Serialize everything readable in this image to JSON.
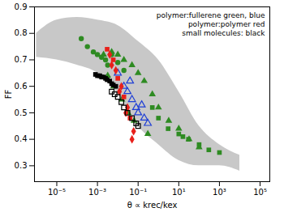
{
  "chart_data": {
    "type": "scatter",
    "x_label": "θ ∝ krec/kex",
    "y_label": "FF",
    "log": "x",
    "xlim": [
      8e-07,
      300000
    ],
    "ylim": [
      0.24,
      0.9
    ],
    "xticks": [
      {
        "value": 1e-05,
        "label": "10⁻⁵"
      },
      {
        "value": 0.001,
        "label": "10⁻³"
      },
      {
        "value": 0.1,
        "label": "10⁻¹"
      },
      {
        "value": 10,
        "label": "10¹"
      },
      {
        "value": 1000,
        "label": "10³"
      },
      {
        "value": 100000,
        "label": "10⁵"
      }
    ],
    "yticks": [
      0.3,
      0.4,
      0.5,
      0.6,
      0.7,
      0.8,
      0.9
    ],
    "annotations": [
      "polymer:fullerene green, blue",
      "polymer:polymer red",
      "small molecules: black"
    ],
    "series": [
      {
        "type": "area",
        "color": "#c8c8c8",
        "x": [
          1e-06,
          1e-05,
          0.0001,
          0.001,
          0.01,
          0.1,
          1,
          10,
          100,
          1000,
          10000
        ],
        "lower": [
          0.71,
          0.7,
          0.68,
          0.65,
          0.57,
          0.45,
          0.38,
          0.32,
          0.3,
          0.3,
          0.28
        ],
        "upper": [
          0.8,
          0.85,
          0.86,
          0.85,
          0.83,
          0.77,
          0.7,
          0.58,
          0.45,
          0.38,
          0.34
        ]
      },
      {
        "type": "scatter",
        "color": "#2e8b22",
        "marker": "circle",
        "x": [
          0.00016,
          0.00032,
          0.00063,
          0.001,
          0.0016,
          0.0025,
          0.0032,
          0.005,
          0.01,
          0.02
        ],
        "values": [
          0.78,
          0.75,
          0.73,
          0.72,
          0.71,
          0.7,
          0.68,
          0.72,
          0.69,
          0.66
        ]
      },
      {
        "type": "scatter",
        "color": "#2e8b22",
        "marker": "triangle",
        "x": [
          0.002,
          0.005,
          0.01,
          0.02,
          0.05,
          0.1,
          0.2,
          0.5,
          1,
          3.2,
          10,
          32,
          100,
          0.0032,
          0.0063,
          0.016,
          0.032,
          0.063,
          0.3
        ],
        "values": [
          0.72,
          0.73,
          0.72,
          0.7,
          0.68,
          0.65,
          0.62,
          0.57,
          0.52,
          0.47,
          0.44,
          0.4,
          0.37,
          0.64,
          0.6,
          0.55,
          0.5,
          0.47,
          0.42
        ]
      },
      {
        "type": "scatter",
        "color": "#2e8b22",
        "marker": "square",
        "x": [
          0.5,
          1,
          3,
          10,
          16,
          30,
          100,
          300,
          1000
        ],
        "values": [
          0.52,
          0.48,
          0.44,
          0.42,
          0.41,
          0.4,
          0.38,
          0.36,
          0.35
        ]
      },
      {
        "type": "scatter",
        "color": "#1f3fd6",
        "marker": "open-triangle",
        "x": [
          0.01,
          0.02,
          0.03,
          0.04,
          0.05,
          0.08,
          0.1,
          0.15,
          0.2,
          0.3
        ],
        "values": [
          0.65,
          0.6,
          0.58,
          0.62,
          0.55,
          0.52,
          0.5,
          0.53,
          0.48,
          0.46
        ]
      },
      {
        "type": "scatter",
        "color": "#e8201a",
        "marker": "square",
        "x": [
          0.003,
          0.006,
          0.01,
          0.02,
          0.04
        ],
        "values": [
          0.74,
          0.7,
          0.63,
          0.56,
          0.48
        ]
      },
      {
        "type": "scatter",
        "color": "#e8201a",
        "marker": "diamond",
        "x": [
          0.004,
          0.005,
          0.008,
          0.012,
          0.015,
          0.025,
          0.03,
          0.05,
          0.06
        ],
        "values": [
          0.72,
          0.68,
          0.66,
          0.58,
          0.6,
          0.5,
          0.52,
          0.4,
          0.43
        ]
      },
      {
        "type": "scatter",
        "color": "#000000",
        "marker": "square",
        "x": [
          0.0008,
          0.001,
          0.0013,
          0.0016,
          0.002,
          0.0025,
          0.003,
          0.004,
          0.005,
          0.006,
          0.008
        ],
        "values": [
          0.645,
          0.64,
          0.64,
          0.635,
          0.635,
          0.63,
          0.625,
          0.62,
          0.61,
          0.605,
          0.6
        ]
      },
      {
        "type": "scatter",
        "color": "#000000",
        "marker": "open-square",
        "x": [
          0.005,
          0.007,
          0.01,
          0.015,
          0.02,
          0.03,
          0.05,
          0.08,
          0.1
        ],
        "values": [
          0.58,
          0.57,
          0.56,
          0.54,
          0.52,
          0.5,
          0.48,
          0.46,
          0.45
        ]
      }
    ]
  }
}
